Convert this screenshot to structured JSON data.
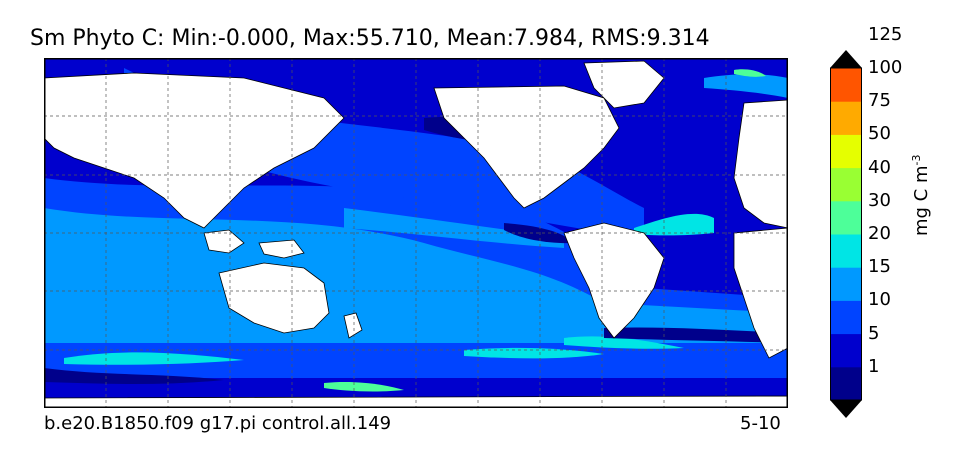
{
  "title": "Sm Phyto C: Min:-0.000, Max:55.710, Mean:7.984, RMS:9.314",
  "footer": {
    "case": "b.e20.B1850.f09 g17.pi control.all.149",
    "period": "5-10"
  },
  "colorbar": {
    "unit_text": "mg C m",
    "unit_exp": "-3",
    "levels": [
      "1",
      "5",
      "10",
      "15",
      "20",
      "30",
      "40",
      "50",
      "75",
      "100",
      "125"
    ],
    "colors": [
      "#00008b",
      "#0000cd",
      "#0044ff",
      "#0099ff",
      "#00e5e5",
      "#4dff99",
      "#99ff33",
      "#e5ff00",
      "#ffaa00",
      "#ff5500",
      "#ff0000",
      "#8b0000"
    ]
  },
  "map": {
    "colors": {
      "ocean_deep": "#0000cd",
      "ocean_mid": "#0044ff",
      "ocean_light": "#0099ff",
      "cyan": "#00e5e5",
      "green": "#4dff99",
      "dark": "#00008b",
      "land": "#ffffff",
      "grid": "#555555"
    }
  }
}
